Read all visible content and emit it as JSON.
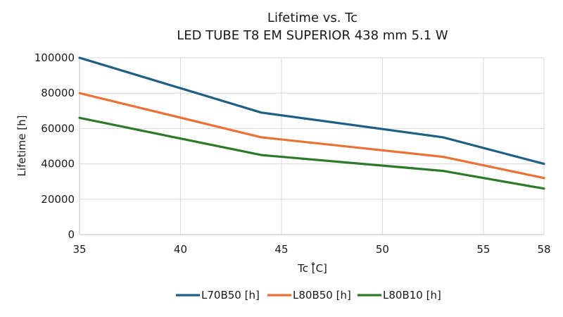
{
  "chart_data": {
    "type": "line",
    "title": "Lifetime vs. Tc",
    "subtitle": "LED TUBE T8 EM SUPERIOR 438 mm 5.1 W",
    "xlabel": "Tc [̊C]",
    "ylabel": "Lifetime [h]",
    "xlim": [
      35,
      58
    ],
    "ylim": [
      0,
      100000
    ],
    "x_ticks": [
      35,
      40,
      45,
      50,
      55,
      58
    ],
    "y_ticks": [
      0,
      20000,
      40000,
      60000,
      80000,
      100000
    ],
    "grid": true,
    "legend_position": "bottom",
    "x": [
      35,
      44,
      53,
      58
    ],
    "series": [
      {
        "name": "L70B50 [h]",
        "color": "#1f5f86",
        "values": [
          100000,
          69000,
          55000,
          40000
        ]
      },
      {
        "name": "L80B50 [h]",
        "color": "#ec7135",
        "values": [
          80000,
          55000,
          44000,
          32000
        ]
      },
      {
        "name": "L80B10 [h]",
        "color": "#2a7a2a",
        "values": [
          66000,
          45000,
          36000,
          26000
        ]
      }
    ]
  }
}
